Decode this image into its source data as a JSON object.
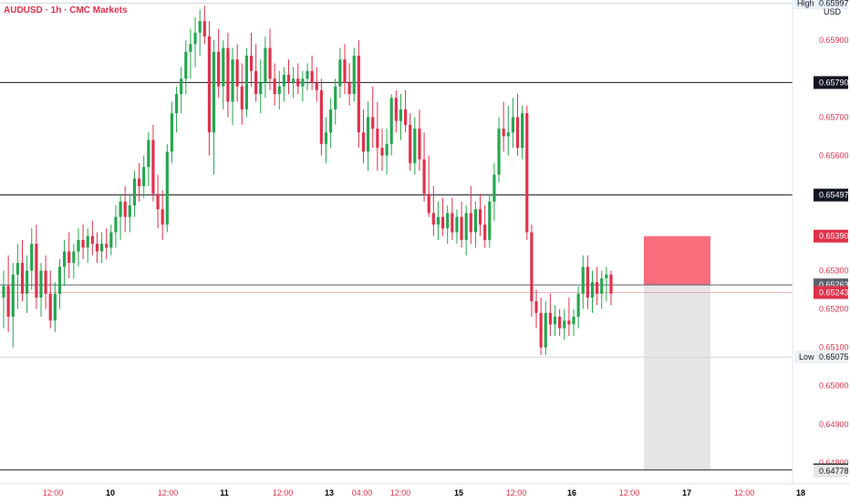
{
  "chart_data": {
    "type": "candlestick",
    "title": "AUDUSD · 1h · CMC Markets",
    "currency": "USD",
    "y_axis": {
      "ticks": [
        "0.65900",
        "0.65700",
        "0.65600",
        "0.65300",
        "0.65200",
        "0.65100",
        "0.65000",
        "0.64900",
        "0.64800"
      ],
      "tick_values": [
        0.659,
        0.657,
        0.656,
        0.653,
        0.652,
        0.651,
        0.65,
        0.649,
        0.648
      ],
      "ylim": [
        0.64745,
        0.66005
      ]
    },
    "x_axis": {
      "labels": [
        {
          "text": "12:00",
          "bold": false
        },
        {
          "text": "10",
          "bold": true
        },
        {
          "text": "12:00",
          "bold": false
        },
        {
          "text": "11",
          "bold": true
        },
        {
          "text": "12:00",
          "bold": false
        },
        {
          "text": "13",
          "bold": true
        },
        {
          "text": "04:00",
          "bold": false
        },
        {
          "text": "12:00",
          "bold": false
        },
        {
          "text": "15",
          "bold": true
        },
        {
          "text": "12:00",
          "bold": false
        },
        {
          "text": "16",
          "bold": true
        },
        {
          "text": "12:00",
          "bold": false
        },
        {
          "text": "17",
          "bold": true
        },
        {
          "text": "12:00",
          "bold": false
        },
        {
          "text": "18",
          "bold": true
        }
      ]
    },
    "horizontal_levels": [
      {
        "value": 0.6579,
        "label": "0.65790",
        "style": "black"
      },
      {
        "value": 0.65497,
        "label": "0.65497",
        "style": "black"
      },
      {
        "value": 0.65263,
        "label": "0.65263",
        "style": "gray"
      },
      {
        "value": 0.64781,
        "label": "0.64781",
        "style": "black"
      }
    ],
    "price_tags": [
      {
        "value": 0.6539,
        "label": "0.65390",
        "style": "red"
      },
      {
        "value": 0.65243,
        "label": "0.65243",
        "style": "red"
      },
      {
        "value": 0.64778,
        "label": "0.64778",
        "style": "light"
      }
    ],
    "high": {
      "label": "High",
      "value": 0.65997,
      "text": "0.65997"
    },
    "low": {
      "label": "Low",
      "value": 0.65075,
      "text": "0.65075"
    },
    "current_price": 0.65243,
    "position": {
      "entry": 0.65263,
      "stop": 0.6539,
      "target": 0.64781
    },
    "colors": {
      "up": "#26a650",
      "down": "#e0314b",
      "stop_zone": "#f76d7c",
      "target_zone": "#e6e6e6",
      "accent": "#e0314b"
    },
    "candles": [
      [
        0.6523,
        0.653,
        0.6515,
        0.6526
      ],
      [
        0.6526,
        0.6534,
        0.6514,
        0.6518
      ],
      [
        0.6518,
        0.6532,
        0.651,
        0.6529
      ],
      [
        0.6529,
        0.6537,
        0.652,
        0.6532
      ],
      [
        0.6532,
        0.6538,
        0.6522,
        0.6524
      ],
      [
        0.6524,
        0.6534,
        0.6519,
        0.653
      ],
      [
        0.653,
        0.6541,
        0.6525,
        0.6537
      ],
      [
        0.6537,
        0.6542,
        0.652,
        0.6523
      ],
      [
        0.6523,
        0.6532,
        0.6518,
        0.653
      ],
      [
        0.653,
        0.6534,
        0.652,
        0.6524
      ],
      [
        0.6524,
        0.653,
        0.6515,
        0.6517
      ],
      [
        0.6517,
        0.6527,
        0.6514,
        0.6524
      ],
      [
        0.6524,
        0.6533,
        0.652,
        0.6531
      ],
      [
        0.6531,
        0.6538,
        0.6526,
        0.6535
      ],
      [
        0.6535,
        0.654,
        0.6528,
        0.6532
      ],
      [
        0.6532,
        0.6537,
        0.6528,
        0.6535
      ],
      [
        0.6535,
        0.6541,
        0.6531,
        0.6538
      ],
      [
        0.6538,
        0.6542,
        0.6533,
        0.6536
      ],
      [
        0.6536,
        0.6541,
        0.6532,
        0.6539
      ],
      [
        0.6539,
        0.6543,
        0.6534,
        0.6537
      ],
      [
        0.6537,
        0.654,
        0.6532,
        0.6535
      ],
      [
        0.6535,
        0.654,
        0.6532,
        0.6537
      ],
      [
        0.6537,
        0.6541,
        0.6533,
        0.6536
      ],
      [
        0.6536,
        0.6542,
        0.6534,
        0.654
      ],
      [
        0.654,
        0.6547,
        0.6536,
        0.6544
      ],
      [
        0.6544,
        0.655,
        0.6538,
        0.6548
      ],
      [
        0.6548,
        0.6552,
        0.654,
        0.6544
      ],
      [
        0.6544,
        0.655,
        0.654,
        0.6547
      ],
      [
        0.6547,
        0.6556,
        0.6544,
        0.6554
      ],
      [
        0.6554,
        0.6558,
        0.6548,
        0.6552
      ],
      [
        0.6552,
        0.656,
        0.6549,
        0.6557
      ],
      [
        0.6557,
        0.6566,
        0.6552,
        0.6564
      ],
      [
        0.6564,
        0.6568,
        0.6548,
        0.655
      ],
      [
        0.655,
        0.6555,
        0.6541,
        0.6546
      ],
      [
        0.6546,
        0.6551,
        0.6538,
        0.6542
      ],
      [
        0.6542,
        0.6563,
        0.654,
        0.6561
      ],
      [
        0.6561,
        0.6574,
        0.6558,
        0.6571
      ],
      [
        0.6571,
        0.6578,
        0.6566,
        0.6576
      ],
      [
        0.6576,
        0.6583,
        0.6571,
        0.658
      ],
      [
        0.658,
        0.659,
        0.6576,
        0.6587
      ],
      [
        0.6587,
        0.6593,
        0.658,
        0.6589
      ],
      [
        0.6589,
        0.6596,
        0.6583,
        0.6592
      ],
      [
        0.6592,
        0.6598,
        0.6586,
        0.6595
      ],
      [
        0.6595,
        0.6599,
        0.6589,
        0.6591
      ],
      [
        0.6591,
        0.6595,
        0.656,
        0.6566
      ],
      [
        0.6566,
        0.659,
        0.6555,
        0.6587
      ],
      [
        0.6587,
        0.6593,
        0.6575,
        0.6578
      ],
      [
        0.6578,
        0.659,
        0.6572,
        0.6588
      ],
      [
        0.6588,
        0.6592,
        0.657,
        0.6574
      ],
      [
        0.6574,
        0.6588,
        0.6568,
        0.6585
      ],
      [
        0.6585,
        0.6589,
        0.6574,
        0.6578
      ],
      [
        0.6578,
        0.6584,
        0.6568,
        0.6572
      ],
      [
        0.6572,
        0.6588,
        0.657,
        0.6586
      ],
      [
        0.6586,
        0.6592,
        0.6578,
        0.6582
      ],
      [
        0.6582,
        0.6589,
        0.6574,
        0.6576
      ],
      [
        0.6576,
        0.6585,
        0.6571,
        0.6579
      ],
      [
        0.6579,
        0.6591,
        0.6575,
        0.6588
      ],
      [
        0.6588,
        0.6593,
        0.6577,
        0.658
      ],
      [
        0.658,
        0.6584,
        0.6573,
        0.6576
      ],
      [
        0.6576,
        0.6582,
        0.6572,
        0.6578
      ],
      [
        0.6578,
        0.6583,
        0.6574,
        0.6581
      ],
      [
        0.6581,
        0.6585,
        0.6576,
        0.6579
      ],
      [
        0.6579,
        0.6583,
        0.6575,
        0.658
      ],
      [
        0.658,
        0.6584,
        0.6576,
        0.6578
      ],
      [
        0.6578,
        0.6582,
        0.6574,
        0.658
      ],
      [
        0.658,
        0.6584,
        0.6577,
        0.6582
      ],
      [
        0.6582,
        0.6586,
        0.6577,
        0.6579
      ],
      [
        0.6579,
        0.6583,
        0.6574,
        0.6577
      ],
      [
        0.6577,
        0.658,
        0.656,
        0.6563
      ],
      [
        0.6563,
        0.657,
        0.6558,
        0.6566
      ],
      [
        0.6566,
        0.6575,
        0.6562,
        0.6572
      ],
      [
        0.6572,
        0.658,
        0.6568,
        0.6578
      ],
      [
        0.6578,
        0.6588,
        0.6575,
        0.6585
      ],
      [
        0.6585,
        0.6589,
        0.6576,
        0.6579
      ],
      [
        0.6579,
        0.6584,
        0.6573,
        0.6576
      ],
      [
        0.6576,
        0.6588,
        0.6574,
        0.6586
      ],
      [
        0.6586,
        0.659,
        0.6562,
        0.6566
      ],
      [
        0.6566,
        0.6572,
        0.6558,
        0.6561
      ],
      [
        0.6561,
        0.6574,
        0.6556,
        0.657
      ],
      [
        0.657,
        0.6578,
        0.6562,
        0.6567
      ],
      [
        0.6567,
        0.6574,
        0.6556,
        0.6562
      ],
      [
        0.6562,
        0.6567,
        0.6556,
        0.656
      ],
      [
        0.656,
        0.6567,
        0.6555,
        0.6563
      ],
      [
        0.6563,
        0.6576,
        0.656,
        0.6575
      ],
      [
        0.6575,
        0.6577,
        0.6566,
        0.6569
      ],
      [
        0.6569,
        0.6576,
        0.6564,
        0.6572
      ],
      [
        0.6572,
        0.6577,
        0.6566,
        0.6568
      ],
      [
        0.6568,
        0.6571,
        0.6556,
        0.6558
      ],
      [
        0.6558,
        0.657,
        0.6555,
        0.6567
      ],
      [
        0.6567,
        0.6572,
        0.6556,
        0.6559
      ],
      [
        0.6559,
        0.6566,
        0.6548,
        0.655
      ],
      [
        0.655,
        0.656,
        0.6544,
        0.6545
      ],
      [
        0.6545,
        0.6552,
        0.6539,
        0.6542
      ],
      [
        0.6542,
        0.6548,
        0.6538,
        0.6544
      ],
      [
        0.6544,
        0.6549,
        0.6539,
        0.6541
      ],
      [
        0.6541,
        0.6547,
        0.6537,
        0.6545
      ],
      [
        0.6545,
        0.6549,
        0.6538,
        0.654
      ],
      [
        0.654,
        0.6546,
        0.6537,
        0.6544
      ],
      [
        0.6544,
        0.6548,
        0.6536,
        0.6538
      ],
      [
        0.6538,
        0.6547,
        0.6534,
        0.6545
      ],
      [
        0.6545,
        0.6552,
        0.6537,
        0.654
      ],
      [
        0.654,
        0.6548,
        0.6536,
        0.6546
      ],
      [
        0.6546,
        0.655,
        0.6539,
        0.6542
      ],
      [
        0.6542,
        0.6547,
        0.6536,
        0.6538
      ],
      [
        0.6538,
        0.655,
        0.6536,
        0.6548
      ],
      [
        0.6548,
        0.6558,
        0.6543,
        0.6555
      ],
      [
        0.6555,
        0.657,
        0.6553,
        0.6567
      ],
      [
        0.6567,
        0.6574,
        0.6561,
        0.6565
      ],
      [
        0.6565,
        0.6573,
        0.656,
        0.6566
      ],
      [
        0.6566,
        0.6575,
        0.6562,
        0.657
      ],
      [
        0.657,
        0.6576,
        0.656,
        0.6562
      ],
      [
        0.6562,
        0.6573,
        0.6559,
        0.6571
      ],
      [
        0.6571,
        0.6573,
        0.6538,
        0.654
      ],
      [
        0.654,
        0.6542,
        0.6518,
        0.6522
      ],
      [
        0.6522,
        0.6525,
        0.6515,
        0.6519
      ],
      [
        0.6519,
        0.6523,
        0.6508,
        0.651
      ],
      [
        0.651,
        0.6522,
        0.6508,
        0.6519
      ],
      [
        0.6519,
        0.6524,
        0.6513,
        0.6516
      ],
      [
        0.6516,
        0.6521,
        0.6513,
        0.6518
      ],
      [
        0.6518,
        0.652,
        0.6513,
        0.6515
      ],
      [
        0.6515,
        0.652,
        0.6512,
        0.6517
      ],
      [
        0.6517,
        0.6523,
        0.6513,
        0.6516
      ],
      [
        0.6516,
        0.652,
        0.6513,
        0.6518
      ],
      [
        0.6518,
        0.6526,
        0.6515,
        0.6524
      ],
      [
        0.6524,
        0.6534,
        0.652,
        0.6531
      ],
      [
        0.6531,
        0.6534,
        0.652,
        0.6523
      ],
      [
        0.6523,
        0.653,
        0.6519,
        0.6527
      ],
      [
        0.6527,
        0.6531,
        0.6521,
        0.6524
      ],
      [
        0.6524,
        0.653,
        0.652,
        0.6528
      ],
      [
        0.6528,
        0.6531,
        0.6522,
        0.6529
      ],
      [
        0.6529,
        0.653,
        0.6521,
        0.6524
      ]
    ]
  }
}
